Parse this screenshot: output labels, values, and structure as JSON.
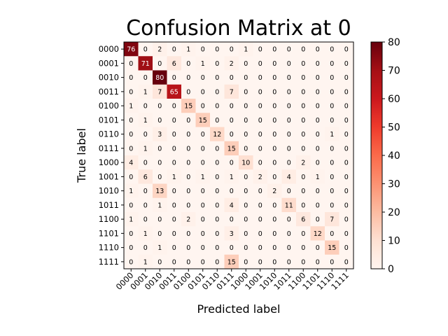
{
  "chart_data": {
    "type": "heatmap",
    "title": "Confusion Matrix at 0",
    "xlabel": "Predicted label",
    "ylabel": "True label",
    "labels": [
      "0000",
      "0001",
      "0010",
      "0011",
      "0100",
      "0101",
      "0110",
      "0111",
      "1000",
      "1001",
      "1010",
      "1011",
      "1100",
      "1101",
      "1110",
      "1111"
    ],
    "matrix": [
      [
        76,
        0,
        2,
        0,
        1,
        0,
        0,
        0,
        1,
        0,
        0,
        0,
        0,
        0,
        0,
        0
      ],
      [
        0,
        71,
        0,
        6,
        0,
        1,
        0,
        2,
        0,
        0,
        0,
        0,
        0,
        0,
        0,
        0
      ],
      [
        0,
        0,
        80,
        0,
        0,
        0,
        0,
        0,
        0,
        0,
        0,
        0,
        0,
        0,
        0,
        0
      ],
      [
        0,
        1,
        7,
        65,
        0,
        0,
        0,
        7,
        0,
        0,
        0,
        0,
        0,
        0,
        0,
        0
      ],
      [
        1,
        0,
        0,
        0,
        15,
        0,
        0,
        0,
        0,
        0,
        0,
        0,
        0,
        0,
        0,
        0
      ],
      [
        0,
        1,
        0,
        0,
        0,
        15,
        0,
        0,
        0,
        0,
        0,
        0,
        0,
        0,
        0,
        0
      ],
      [
        0,
        0,
        3,
        0,
        0,
        0,
        12,
        0,
        0,
        0,
        0,
        0,
        0,
        0,
        1,
        0
      ],
      [
        0,
        1,
        0,
        0,
        0,
        0,
        0,
        15,
        0,
        0,
        0,
        0,
        0,
        0,
        0,
        0
      ],
      [
        4,
        0,
        0,
        0,
        0,
        0,
        0,
        0,
        10,
        0,
        0,
        0,
        2,
        0,
        0,
        0
      ],
      [
        0,
        6,
        0,
        1,
        0,
        1,
        0,
        1,
        0,
        2,
        0,
        4,
        0,
        1,
        0,
        0
      ],
      [
        1,
        0,
        13,
        0,
        0,
        0,
        0,
        0,
        0,
        0,
        2,
        0,
        0,
        0,
        0,
        0
      ],
      [
        0,
        0,
        1,
        0,
        0,
        0,
        0,
        4,
        0,
        0,
        0,
        11,
        0,
        0,
        0,
        0
      ],
      [
        1,
        0,
        0,
        0,
        2,
        0,
        0,
        0,
        0,
        0,
        0,
        0,
        6,
        0,
        7,
        0
      ],
      [
        0,
        1,
        0,
        0,
        0,
        0,
        0,
        3,
        0,
        0,
        0,
        0,
        0,
        12,
        0,
        0
      ],
      [
        0,
        0,
        1,
        0,
        0,
        0,
        0,
        0,
        0,
        0,
        0,
        0,
        0,
        0,
        15,
        0
      ],
      [
        0,
        1,
        0,
        0,
        0,
        0,
        0,
        15,
        0,
        0,
        0,
        0,
        0,
        0,
        0,
        0
      ]
    ],
    "colormap": "Reds",
    "vmin": 0,
    "vmax": 80,
    "colorbar_ticks": [
      0,
      10,
      20,
      30,
      40,
      50,
      60,
      70,
      80
    ]
  }
}
